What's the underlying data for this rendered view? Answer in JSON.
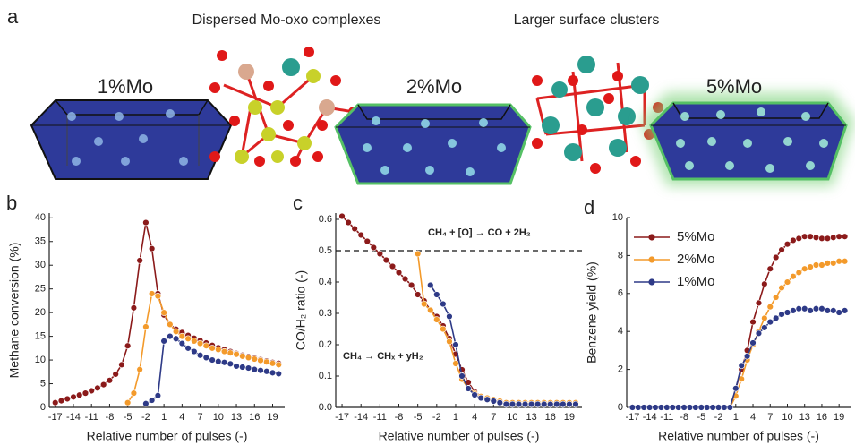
{
  "panel_a": {
    "label": "a",
    "captions": [
      "Dispersed Mo-oxo complexes",
      "Larger surface clusters"
    ],
    "samples": [
      "1%Mo",
      "2%Mo",
      "5%Mo"
    ]
  },
  "chart_data": [
    {
      "type": "line",
      "panel_label": "b",
      "xlabel": "Relative number of pulses (-)",
      "ylabel": "Methane conversion (%)",
      "x": [
        -17,
        -16,
        -15,
        -14,
        -13,
        -12,
        -11,
        -10,
        -9,
        -8,
        -7,
        -6,
        -5,
        -4,
        -3,
        -2,
        -1,
        0,
        1,
        2,
        3,
        4,
        5,
        6,
        7,
        8,
        9,
        10,
        11,
        12,
        13,
        14,
        15,
        16,
        17,
        18,
        19,
        20
      ],
      "xlim": [
        -18,
        21
      ],
      "xticks": [
        -17,
        -14,
        -11,
        -8,
        -5,
        -2,
        1,
        4,
        7,
        10,
        13,
        16,
        19
      ],
      "ylim": [
        0,
        41
      ],
      "yticks": [
        0,
        5,
        10,
        15,
        20,
        25,
        30,
        35,
        40
      ],
      "series": [
        {
          "color": "#8b1a1a",
          "values": [
            1,
            1.4,
            1.8,
            2.2,
            2.6,
            3,
            3.5,
            4.1,
            4.8,
            5.7,
            7,
            9,
            13,
            21,
            31,
            39,
            33.5,
            24,
            19.5,
            17.5,
            16.5,
            15.8,
            15.2,
            14.6,
            14.1,
            13.6,
            13.1,
            12.6,
            12.2,
            11.8,
            11.4,
            11,
            10.7,
            10.4,
            10.1,
            9.8,
            9.5,
            9.3
          ]
        },
        {
          "color": "#f39a2b",
          "values": [
            null,
            null,
            null,
            null,
            null,
            null,
            null,
            null,
            null,
            null,
            null,
            null,
            1,
            3,
            8,
            17,
            24,
            23.5,
            20,
            17.5,
            16,
            15,
            14.5,
            14,
            13.5,
            13,
            12.5,
            12.2,
            11.8,
            11.5,
            11.2,
            10.8,
            10.5,
            10.2,
            9.9,
            9.6,
            9.3,
            9
          ]
        },
        {
          "color": "#2e3a87",
          "values": [
            null,
            null,
            null,
            null,
            null,
            null,
            null,
            null,
            null,
            null,
            null,
            null,
            null,
            null,
            null,
            0.8,
            1.5,
            2.5,
            14,
            15,
            14.5,
            13.5,
            12.5,
            11.8,
            11,
            10.5,
            10,
            9.7,
            9.5,
            9.2,
            8.7,
            8.5,
            8.3,
            8,
            7.8,
            7.6,
            7.3,
            7.1
          ]
        }
      ]
    },
    {
      "type": "line",
      "panel_label": "c",
      "xlabel": "Relative number of pulses (-)",
      "ylabel": "CO/H₂ ratio (-)",
      "x": [
        -17,
        -16,
        -15,
        -14,
        -13,
        -12,
        -11,
        -10,
        -9,
        -8,
        -7,
        -6,
        -5,
        -4,
        -3,
        -2,
        -1,
        0,
        1,
        2,
        3,
        4,
        5,
        6,
        7,
        8,
        9,
        10,
        11,
        12,
        13,
        14,
        15,
        16,
        17,
        18,
        19,
        20
      ],
      "xlim": [
        -18,
        21
      ],
      "xticks": [
        -17,
        -14,
        -11,
        -8,
        -5,
        -2,
        1,
        4,
        7,
        10,
        13,
        16,
        19
      ],
      "ylim": [
        0,
        0.62
      ],
      "yticks": [
        0.0,
        0.1,
        0.2,
        0.3,
        0.4,
        0.5,
        0.6
      ],
      "hline": 0.5,
      "annotations": [
        "CH₄ + [O] → CO + 2H₂",
        "CH₄ → CHₓ + yH₂"
      ],
      "series": [
        {
          "color": "#8b1a1a",
          "values": [
            0.61,
            0.59,
            0.57,
            0.55,
            0.53,
            0.51,
            0.49,
            0.47,
            0.45,
            0.43,
            0.41,
            0.39,
            0.36,
            0.34,
            0.31,
            0.29,
            0.26,
            0.22,
            0.17,
            0.12,
            0.08,
            0.05,
            0.035,
            0.025,
            0.02,
            0.015,
            0.01,
            0.01,
            0.01,
            0.01,
            0.01,
            0.01,
            0.01,
            0.01,
            0.01,
            0.01,
            0.01,
            0.01
          ]
        },
        {
          "color": "#f39a2b",
          "values": [
            null,
            null,
            null,
            null,
            null,
            null,
            null,
            null,
            null,
            null,
            null,
            null,
            0.49,
            0.33,
            0.31,
            0.28,
            0.25,
            0.21,
            0.14,
            0.09,
            0.06,
            0.045,
            0.035,
            0.03,
            0.025,
            0.02,
            0.015,
            0.015,
            0.015,
            0.015,
            0.015,
            0.015,
            0.015,
            0.015,
            0.015,
            0.015,
            0.015,
            0.015
          ]
        },
        {
          "color": "#2e3a87",
          "values": [
            null,
            null,
            null,
            null,
            null,
            null,
            null,
            null,
            null,
            null,
            null,
            null,
            null,
            null,
            0.39,
            0.36,
            0.33,
            0.29,
            0.2,
            0.1,
            0.06,
            0.04,
            0.03,
            0.025,
            0.02,
            0.015,
            0.01,
            0.01,
            0.01,
            0.01,
            0.01,
            0.01,
            0.01,
            0.01,
            0.01,
            0.01,
            0.01,
            0.01
          ]
        }
      ]
    },
    {
      "type": "line",
      "panel_label": "d",
      "xlabel": "Relative number of pulses (-)",
      "ylabel": "Benzene yield (%)",
      "x": [
        -17,
        -16,
        -15,
        -14,
        -13,
        -12,
        -11,
        -10,
        -9,
        -8,
        -7,
        -6,
        -5,
        -4,
        -3,
        -2,
        -1,
        0,
        1,
        2,
        3,
        4,
        5,
        6,
        7,
        8,
        9,
        10,
        11,
        12,
        13,
        14,
        15,
        16,
        17,
        18,
        19,
        20
      ],
      "xlim": [
        -18,
        21
      ],
      "xticks": [
        -17,
        -14,
        -11,
        -8,
        -5,
        -2,
        1,
        4,
        7,
        10,
        13,
        16,
        19
      ],
      "ylim": [
        0,
        10
      ],
      "yticks": [
        0,
        2,
        4,
        6,
        8,
        10
      ],
      "legend": "upper-left",
      "series": [
        {
          "name": "5%Mo",
          "color": "#8b1a1a",
          "values": [
            0,
            0,
            0,
            0,
            0,
            0,
            0,
            0,
            0,
            0,
            0,
            0,
            0,
            0,
            0,
            0,
            0,
            0,
            1,
            2,
            3,
            4.5,
            5.5,
            6.5,
            7.3,
            7.9,
            8.3,
            8.6,
            8.8,
            8.9,
            9,
            9,
            8.95,
            8.9,
            8.9,
            8.95,
            9,
            9
          ]
        },
        {
          "name": "2%Mo",
          "color": "#f39a2b",
          "values": [
            0,
            0,
            0,
            0,
            0,
            0,
            0,
            0,
            0,
            0,
            0,
            0,
            0,
            0,
            0,
            0,
            0,
            0,
            0.6,
            1.5,
            2.5,
            3.3,
            4,
            4.7,
            5.3,
            5.8,
            6.3,
            6.6,
            6.9,
            7.1,
            7.3,
            7.4,
            7.5,
            7.5,
            7.6,
            7.6,
            7.7,
            7.7
          ]
        },
        {
          "name": "1%Mo",
          "color": "#2e3a87",
          "values": [
            0,
            0,
            0,
            0,
            0,
            0,
            0,
            0,
            0,
            0,
            0,
            0,
            0,
            0,
            0,
            0,
            0,
            0,
            1,
            2.2,
            2.7,
            3.4,
            3.9,
            4.2,
            4.5,
            4.7,
            4.9,
            5,
            5.1,
            5.2,
            5.2,
            5.1,
            5.2,
            5.2,
            5.1,
            5.1,
            5,
            5.1
          ]
        }
      ]
    }
  ]
}
